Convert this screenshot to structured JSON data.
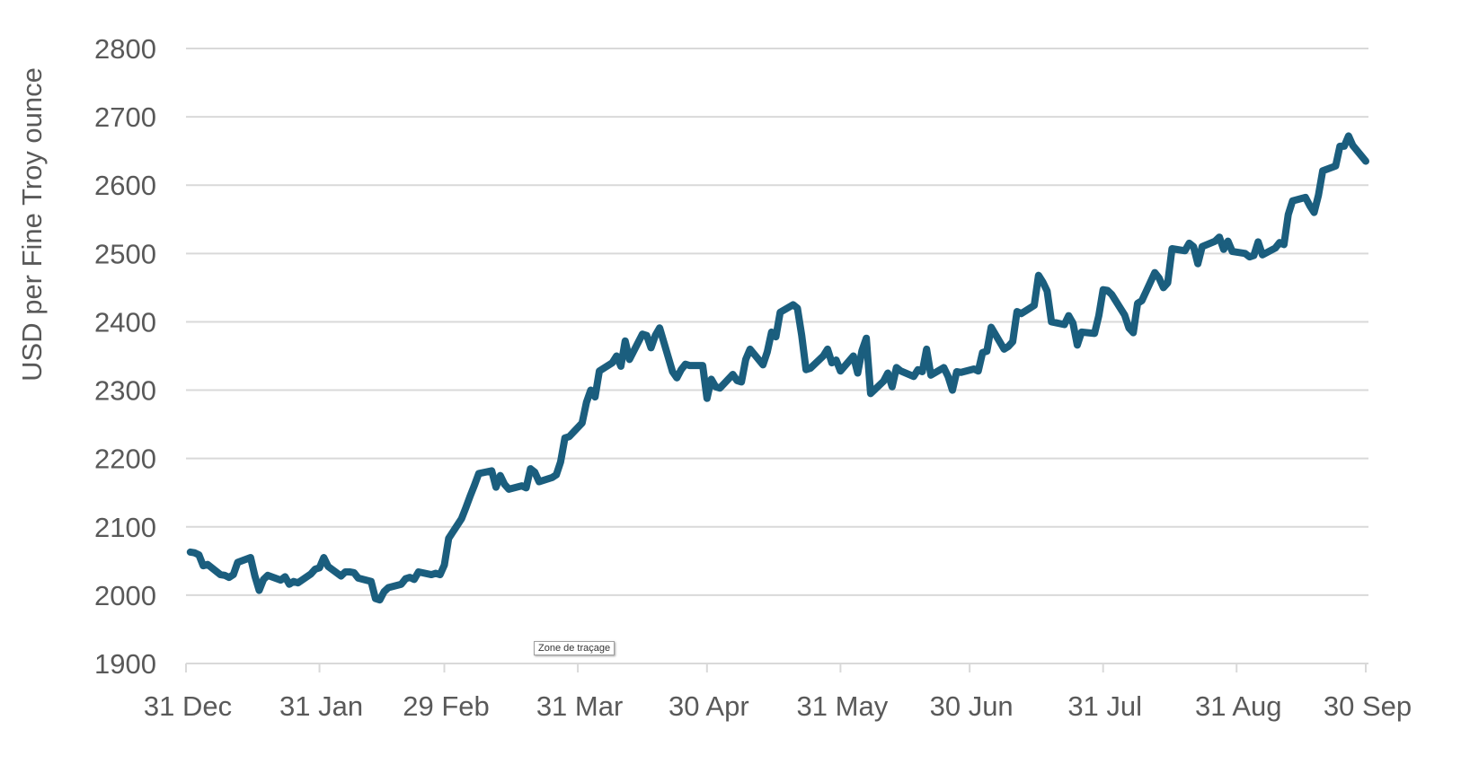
{
  "chart_data": {
    "type": "line",
    "title": "",
    "xlabel": "",
    "ylabel": "USD per Fine Troy ounce",
    "ylim": [
      1900,
      2800
    ],
    "yticks": [
      1900,
      2000,
      2100,
      2200,
      2300,
      2400,
      2500,
      2600,
      2700,
      2800
    ],
    "xlim": [
      "2023-12-31",
      "2024-09-30"
    ],
    "xticks": [
      {
        "date": "2023-12-31",
        "label": "31 Dec"
      },
      {
        "date": "2024-01-31",
        "label": "31 Jan"
      },
      {
        "date": "2024-02-29",
        "label": "29 Feb"
      },
      {
        "date": "2024-03-31",
        "label": "31 Mar"
      },
      {
        "date": "2024-04-30",
        "label": "30 Apr"
      },
      {
        "date": "2024-05-31",
        "label": "31 May"
      },
      {
        "date": "2024-06-30",
        "label": "30 Jun"
      },
      {
        "date": "2024-07-31",
        "label": "31 Jul"
      },
      {
        "date": "2024-08-31",
        "label": "31 Aug"
      },
      {
        "date": "2024-09-30",
        "label": "30 Sep"
      }
    ],
    "grid": true,
    "legend": "none",
    "series_color": "#1b5e7e",
    "series": [
      {
        "points": [
          [
            "2024-01-01",
            2063
          ],
          [
            "2024-01-02",
            2062
          ],
          [
            "2024-01-03",
            2059
          ],
          [
            "2024-01-04",
            2043
          ],
          [
            "2024-01-05",
            2045
          ],
          [
            "2024-01-08",
            2030
          ],
          [
            "2024-01-09",
            2029
          ],
          [
            "2024-01-10",
            2026
          ],
          [
            "2024-01-11",
            2030
          ],
          [
            "2024-01-12",
            2048
          ],
          [
            "2024-01-15",
            2055
          ],
          [
            "2024-01-16",
            2028
          ],
          [
            "2024-01-17",
            2007
          ],
          [
            "2024-01-18",
            2023
          ],
          [
            "2024-01-19",
            2029
          ],
          [
            "2024-01-22",
            2022
          ],
          [
            "2024-01-23",
            2027
          ],
          [
            "2024-01-24",
            2016
          ],
          [
            "2024-01-25",
            2020
          ],
          [
            "2024-01-26",
            2018
          ],
          [
            "2024-01-29",
            2031
          ],
          [
            "2024-01-30",
            2038
          ],
          [
            "2024-01-31",
            2040
          ],
          [
            "2024-02-01",
            2055
          ],
          [
            "2024-02-02",
            2042
          ],
          [
            "2024-02-05",
            2028
          ],
          [
            "2024-02-06",
            2034
          ],
          [
            "2024-02-07",
            2034
          ],
          [
            "2024-02-08",
            2033
          ],
          [
            "2024-02-09",
            2025
          ],
          [
            "2024-02-12",
            2020
          ],
          [
            "2024-02-13",
            1995
          ],
          [
            "2024-02-14",
            1993
          ],
          [
            "2024-02-15",
            2005
          ],
          [
            "2024-02-16",
            2011
          ],
          [
            "2024-02-19",
            2016
          ],
          [
            "2024-02-20",
            2024
          ],
          [
            "2024-02-21",
            2026
          ],
          [
            "2024-02-22",
            2023
          ],
          [
            "2024-02-23",
            2034
          ],
          [
            "2024-02-26",
            2030
          ],
          [
            "2024-02-27",
            2032
          ],
          [
            "2024-02-28",
            2030
          ],
          [
            "2024-02-29",
            2044
          ],
          [
            "2024-03-01",
            2083
          ],
          [
            "2024-03-04",
            2112
          ],
          [
            "2024-03-05",
            2128
          ],
          [
            "2024-03-06",
            2145
          ],
          [
            "2024-03-07",
            2161
          ],
          [
            "2024-03-08",
            2178
          ],
          [
            "2024-03-11",
            2182
          ],
          [
            "2024-03-12",
            2158
          ],
          [
            "2024-03-13",
            2175
          ],
          [
            "2024-03-14",
            2162
          ],
          [
            "2024-03-15",
            2155
          ],
          [
            "2024-03-18",
            2160
          ],
          [
            "2024-03-19",
            2157
          ],
          [
            "2024-03-20",
            2185
          ],
          [
            "2024-03-21",
            2180
          ],
          [
            "2024-03-22",
            2166
          ],
          [
            "2024-03-25",
            2172
          ],
          [
            "2024-03-26",
            2176
          ],
          [
            "2024-03-27",
            2195
          ],
          [
            "2024-03-28",
            2230
          ],
          [
            "2024-03-29",
            2232
          ],
          [
            "2024-04-01",
            2252
          ],
          [
            "2024-04-02",
            2282
          ],
          [
            "2024-04-03",
            2300
          ],
          [
            "2024-04-04",
            2290
          ],
          [
            "2024-04-05",
            2328
          ],
          [
            "2024-04-08",
            2340
          ],
          [
            "2024-04-09",
            2350
          ],
          [
            "2024-04-10",
            2335
          ],
          [
            "2024-04-11",
            2372
          ],
          [
            "2024-04-12",
            2345
          ],
          [
            "2024-04-15",
            2382
          ],
          [
            "2024-04-16",
            2380
          ],
          [
            "2024-04-17",
            2362
          ],
          [
            "2024-04-18",
            2380
          ],
          [
            "2024-04-19",
            2391
          ],
          [
            "2024-04-22",
            2327
          ],
          [
            "2024-04-23",
            2318
          ],
          [
            "2024-04-24",
            2330
          ],
          [
            "2024-04-25",
            2338
          ],
          [
            "2024-04-26",
            2336
          ],
          [
            "2024-04-29",
            2336
          ],
          [
            "2024-04-30",
            2288
          ],
          [
            "2024-05-01",
            2316
          ],
          [
            "2024-05-02",
            2305
          ],
          [
            "2024-05-03",
            2303
          ],
          [
            "2024-05-06",
            2323
          ],
          [
            "2024-05-07",
            2314
          ],
          [
            "2024-05-08",
            2312
          ],
          [
            "2024-05-09",
            2345
          ],
          [
            "2024-05-10",
            2360
          ],
          [
            "2024-05-13",
            2337
          ],
          [
            "2024-05-14",
            2356
          ],
          [
            "2024-05-15",
            2385
          ],
          [
            "2024-05-16",
            2378
          ],
          [
            "2024-05-17",
            2414
          ],
          [
            "2024-05-20",
            2425
          ],
          [
            "2024-05-21",
            2420
          ],
          [
            "2024-05-22",
            2380
          ],
          [
            "2024-05-23",
            2330
          ],
          [
            "2024-05-24",
            2332
          ],
          [
            "2024-05-27",
            2350
          ],
          [
            "2024-05-28",
            2360
          ],
          [
            "2024-05-29",
            2340
          ],
          [
            "2024-05-30",
            2344
          ],
          [
            "2024-05-31",
            2328
          ],
          [
            "2024-06-03",
            2350
          ],
          [
            "2024-06-04",
            2325
          ],
          [
            "2024-06-05",
            2358
          ],
          [
            "2024-06-06",
            2376
          ],
          [
            "2024-06-07",
            2295
          ],
          [
            "2024-06-10",
            2313
          ],
          [
            "2024-06-11",
            2325
          ],
          [
            "2024-06-12",
            2305
          ],
          [
            "2024-06-13",
            2333
          ],
          [
            "2024-06-14",
            2328
          ],
          [
            "2024-06-17",
            2320
          ],
          [
            "2024-06-18",
            2330
          ],
          [
            "2024-06-19",
            2327
          ],
          [
            "2024-06-20",
            2360
          ],
          [
            "2024-06-21",
            2322
          ],
          [
            "2024-06-24",
            2333
          ],
          [
            "2024-06-25",
            2320
          ],
          [
            "2024-06-26",
            2300
          ],
          [
            "2024-06-27",
            2327
          ],
          [
            "2024-06-28",
            2326
          ],
          [
            "2024-07-01",
            2331
          ],
          [
            "2024-07-02",
            2328
          ],
          [
            "2024-07-03",
            2355
          ],
          [
            "2024-07-04",
            2357
          ],
          [
            "2024-07-05",
            2392
          ],
          [
            "2024-07-08",
            2360
          ],
          [
            "2024-07-09",
            2364
          ],
          [
            "2024-07-10",
            2371
          ],
          [
            "2024-07-11",
            2415
          ],
          [
            "2024-07-12",
            2412
          ],
          [
            "2024-07-15",
            2424
          ],
          [
            "2024-07-16",
            2468
          ],
          [
            "2024-07-17",
            2458
          ],
          [
            "2024-07-18",
            2445
          ],
          [
            "2024-07-19",
            2400
          ],
          [
            "2024-07-22",
            2396
          ],
          [
            "2024-07-23",
            2409
          ],
          [
            "2024-07-24",
            2398
          ],
          [
            "2024-07-25",
            2366
          ],
          [
            "2024-07-26",
            2385
          ],
          [
            "2024-07-29",
            2383
          ],
          [
            "2024-07-30",
            2409
          ],
          [
            "2024-07-31",
            2447
          ],
          [
            "2024-08-01",
            2446
          ],
          [
            "2024-08-02",
            2440
          ],
          [
            "2024-08-05",
            2410
          ],
          [
            "2024-08-06",
            2391
          ],
          [
            "2024-08-07",
            2384
          ],
          [
            "2024-08-08",
            2427
          ],
          [
            "2024-08-09",
            2431
          ],
          [
            "2024-08-12",
            2472
          ],
          [
            "2024-08-13",
            2464
          ],
          [
            "2024-08-14",
            2450
          ],
          [
            "2024-08-15",
            2457
          ],
          [
            "2024-08-16",
            2507
          ],
          [
            "2024-08-19",
            2504
          ],
          [
            "2024-08-20",
            2515
          ],
          [
            "2024-08-21",
            2510
          ],
          [
            "2024-08-22",
            2485
          ],
          [
            "2024-08-23",
            2510
          ],
          [
            "2024-08-26",
            2518
          ],
          [
            "2024-08-27",
            2524
          ],
          [
            "2024-08-28",
            2506
          ],
          [
            "2024-08-29",
            2518
          ],
          [
            "2024-08-30",
            2503
          ],
          [
            "2024-09-02",
            2500
          ],
          [
            "2024-09-03",
            2495
          ],
          [
            "2024-09-04",
            2497
          ],
          [
            "2024-09-05",
            2517
          ],
          [
            "2024-09-06",
            2498
          ],
          [
            "2024-09-09",
            2508
          ],
          [
            "2024-09-10",
            2516
          ],
          [
            "2024-09-11",
            2513
          ],
          [
            "2024-09-12",
            2557
          ],
          [
            "2024-09-13",
            2577
          ],
          [
            "2024-09-16",
            2582
          ],
          [
            "2024-09-17",
            2570
          ],
          [
            "2024-09-18",
            2560
          ],
          [
            "2024-09-19",
            2585
          ],
          [
            "2024-09-20",
            2621
          ],
          [
            "2024-09-23",
            2628
          ],
          [
            "2024-09-24",
            2657
          ],
          [
            "2024-09-25",
            2657
          ],
          [
            "2024-09-26",
            2672
          ],
          [
            "2024-09-27",
            2658
          ],
          [
            "2024-09-30",
            2635
          ]
        ]
      }
    ]
  },
  "tooltip": {
    "text": "Zone de traçage"
  }
}
